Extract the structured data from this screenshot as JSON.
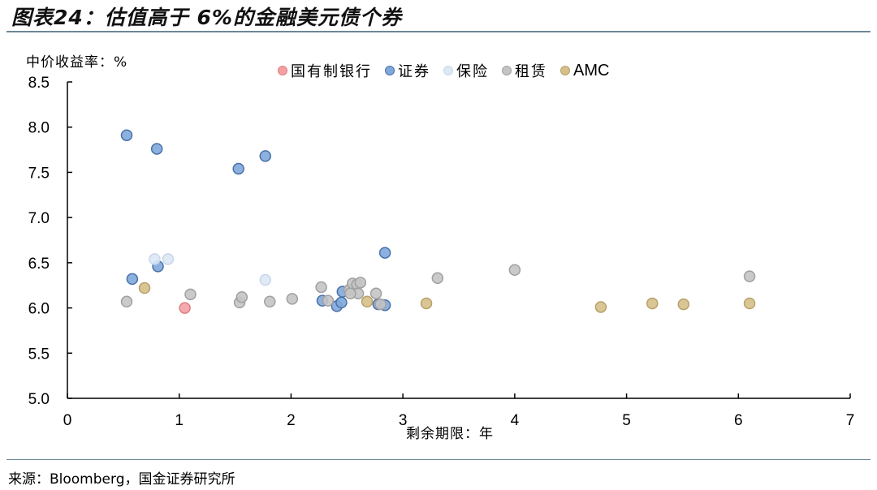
{
  "header": {
    "title": "图表24：估值高于 6%的金融美元债个券"
  },
  "footer": {
    "source": "来源：Bloomberg，国金证券研究所"
  },
  "chart_data": {
    "type": "scatter",
    "title": "图表24：估值高于 6%的金融美元债个券",
    "xlabel": "剩余期限：年",
    "ylabel": "中价收益率：%",
    "xlim": [
      0,
      7
    ],
    "ylim": [
      5.0,
      8.5
    ],
    "x_ticks": [
      "0",
      "1",
      "2",
      "3",
      "4",
      "5",
      "6",
      "7"
    ],
    "y_ticks": [
      "5.0",
      "5.5",
      "6.0",
      "6.5",
      "7.0",
      "7.5",
      "8.0",
      "8.5"
    ],
    "grid": false,
    "legend_position": "top",
    "series": [
      {
        "name": "国有制银行",
        "color": "#f2a0a4",
        "stroke": "#e07c82",
        "points": [
          [
            1.05,
            6.0
          ]
        ]
      },
      {
        "name": "证券",
        "color": "#7fa9dc",
        "stroke": "#4a70a8",
        "points": [
          [
            0.53,
            7.91
          ],
          [
            0.8,
            7.76
          ],
          [
            1.53,
            7.54
          ],
          [
            1.77,
            7.68
          ],
          [
            0.58,
            6.32
          ],
          [
            0.81,
            6.46
          ],
          [
            2.84,
            6.61
          ],
          [
            2.28,
            6.08
          ],
          [
            2.41,
            6.02
          ],
          [
            2.45,
            6.06
          ],
          [
            2.46,
            6.18
          ],
          [
            2.78,
            6.04
          ],
          [
            2.84,
            6.03
          ]
        ]
      },
      {
        "name": "保险",
        "color": "#dde8f5",
        "stroke": "#c7d6ea",
        "points": [
          [
            0.78,
            6.54
          ],
          [
            0.9,
            6.54
          ],
          [
            1.77,
            6.31
          ]
        ]
      },
      {
        "name": "租赁",
        "color": "#c4c4c4",
        "stroke": "#a0a0a0",
        "points": [
          [
            0.53,
            6.07
          ],
          [
            1.1,
            6.15
          ],
          [
            1.54,
            6.06
          ],
          [
            1.56,
            6.12
          ],
          [
            1.81,
            6.07
          ],
          [
            2.01,
            6.1
          ],
          [
            2.27,
            6.23
          ],
          [
            2.33,
            6.08
          ],
          [
            2.52,
            6.2
          ],
          [
            2.55,
            6.27
          ],
          [
            2.59,
            6.26
          ],
          [
            2.62,
            6.28
          ],
          [
            2.6,
            6.16
          ],
          [
            2.53,
            6.16
          ],
          [
            2.76,
            6.16
          ],
          [
            2.8,
            6.04
          ],
          [
            3.31,
            6.33
          ],
          [
            4.0,
            6.42
          ],
          [
            6.1,
            6.35
          ]
        ]
      },
      {
        "name": "AMC",
        "color": "#d6bf8a",
        "stroke": "#b8a068",
        "points": [
          [
            0.69,
            6.22
          ],
          [
            2.68,
            6.07
          ],
          [
            3.21,
            6.05
          ],
          [
            4.77,
            6.01
          ],
          [
            5.23,
            6.05
          ],
          [
            5.51,
            6.04
          ],
          [
            6.1,
            6.05
          ]
        ]
      }
    ]
  }
}
